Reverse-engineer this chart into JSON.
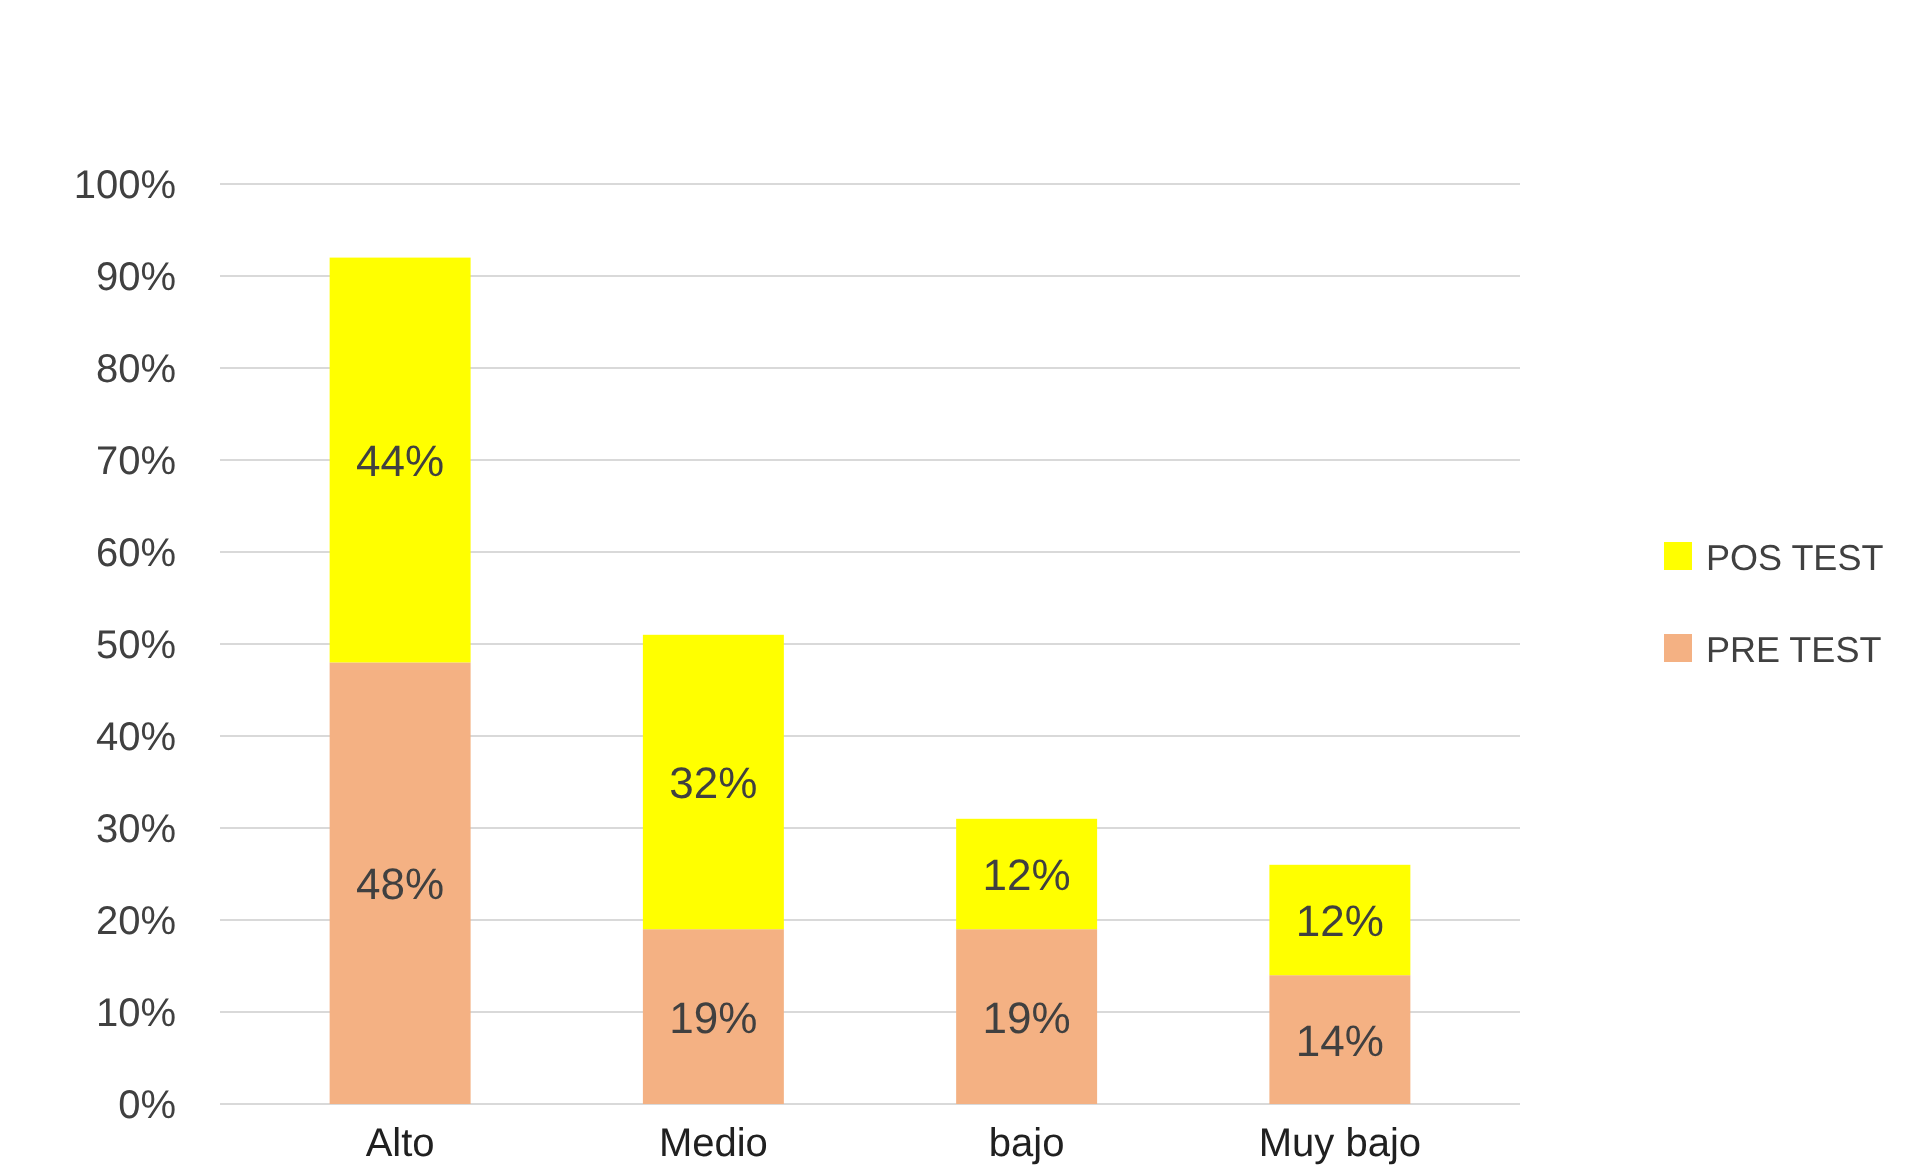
{
  "chart_data": {
    "type": "bar",
    "stacked": true,
    "categories": [
      "Alto",
      "Medio",
      "bajo",
      "Muy bajo"
    ],
    "series": [
      {
        "name": "PRE TEST",
        "color": "#f4b183",
        "values": [
          48,
          19,
          19,
          14
        ],
        "value_labels": [
          "48%",
          "19%",
          "19%",
          "14%"
        ]
      },
      {
        "name": "POS TEST",
        "color": "#ffff00",
        "values": [
          44,
          32,
          12,
          12
        ],
        "value_labels": [
          "44%",
          "32%",
          "12%",
          "12%"
        ]
      }
    ],
    "ylim": [
      0,
      100
    ],
    "yticks": [
      {
        "value": 0,
        "label": "0%"
      },
      {
        "value": 10,
        "label": "10%"
      },
      {
        "value": 20,
        "label": "20%"
      },
      {
        "value": 30,
        "label": "30%"
      },
      {
        "value": 40,
        "label": "40%"
      },
      {
        "value": 50,
        "label": "50%"
      },
      {
        "value": 60,
        "label": "60%"
      },
      {
        "value": 70,
        "label": "70%"
      },
      {
        "value": 80,
        "label": "80%"
      },
      {
        "value": 90,
        "label": "90%"
      },
      {
        "value": 100,
        "label": "100%"
      }
    ],
    "grid": "y",
    "legend": "right"
  }
}
